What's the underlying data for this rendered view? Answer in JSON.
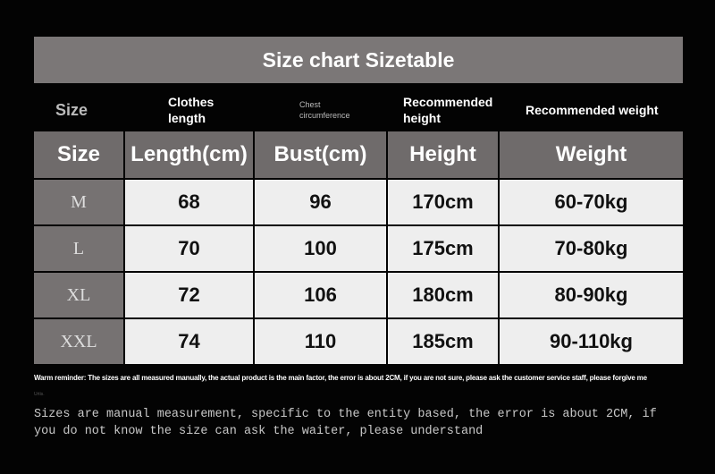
{
  "title": "Size chart Sizetable",
  "subheaders": [
    "Size",
    "Clothes length",
    "Chest circumference",
    "Recommended height",
    "Recommended weight"
  ],
  "headers": [
    "Size",
    "Length(cm)",
    "Bust(cm)",
    "Height",
    "Weight"
  ],
  "rows": [
    [
      "M",
      "68",
      "96",
      "170cm",
      "60-70kg"
    ],
    [
      "L",
      "70",
      "100",
      "175cm",
      "70-80kg"
    ],
    [
      "XL",
      "72",
      "106",
      "180cm",
      "80-90kg"
    ],
    [
      "XXL",
      "74",
      "110",
      "185cm",
      "90-110kg"
    ]
  ],
  "warm_reminder": "Warm reminder: The sizes are all measured manually, the actual product is the main factor, the error is about 2CM, if you are not sure, please ask the customer service staff, please forgive me",
  "warm_reminder_tail": "Urtis.",
  "note": "Sizes are manual measurement, specific to the entity based, the error is about 2CM, if you do not know the size can ask the waiter, please understand"
}
